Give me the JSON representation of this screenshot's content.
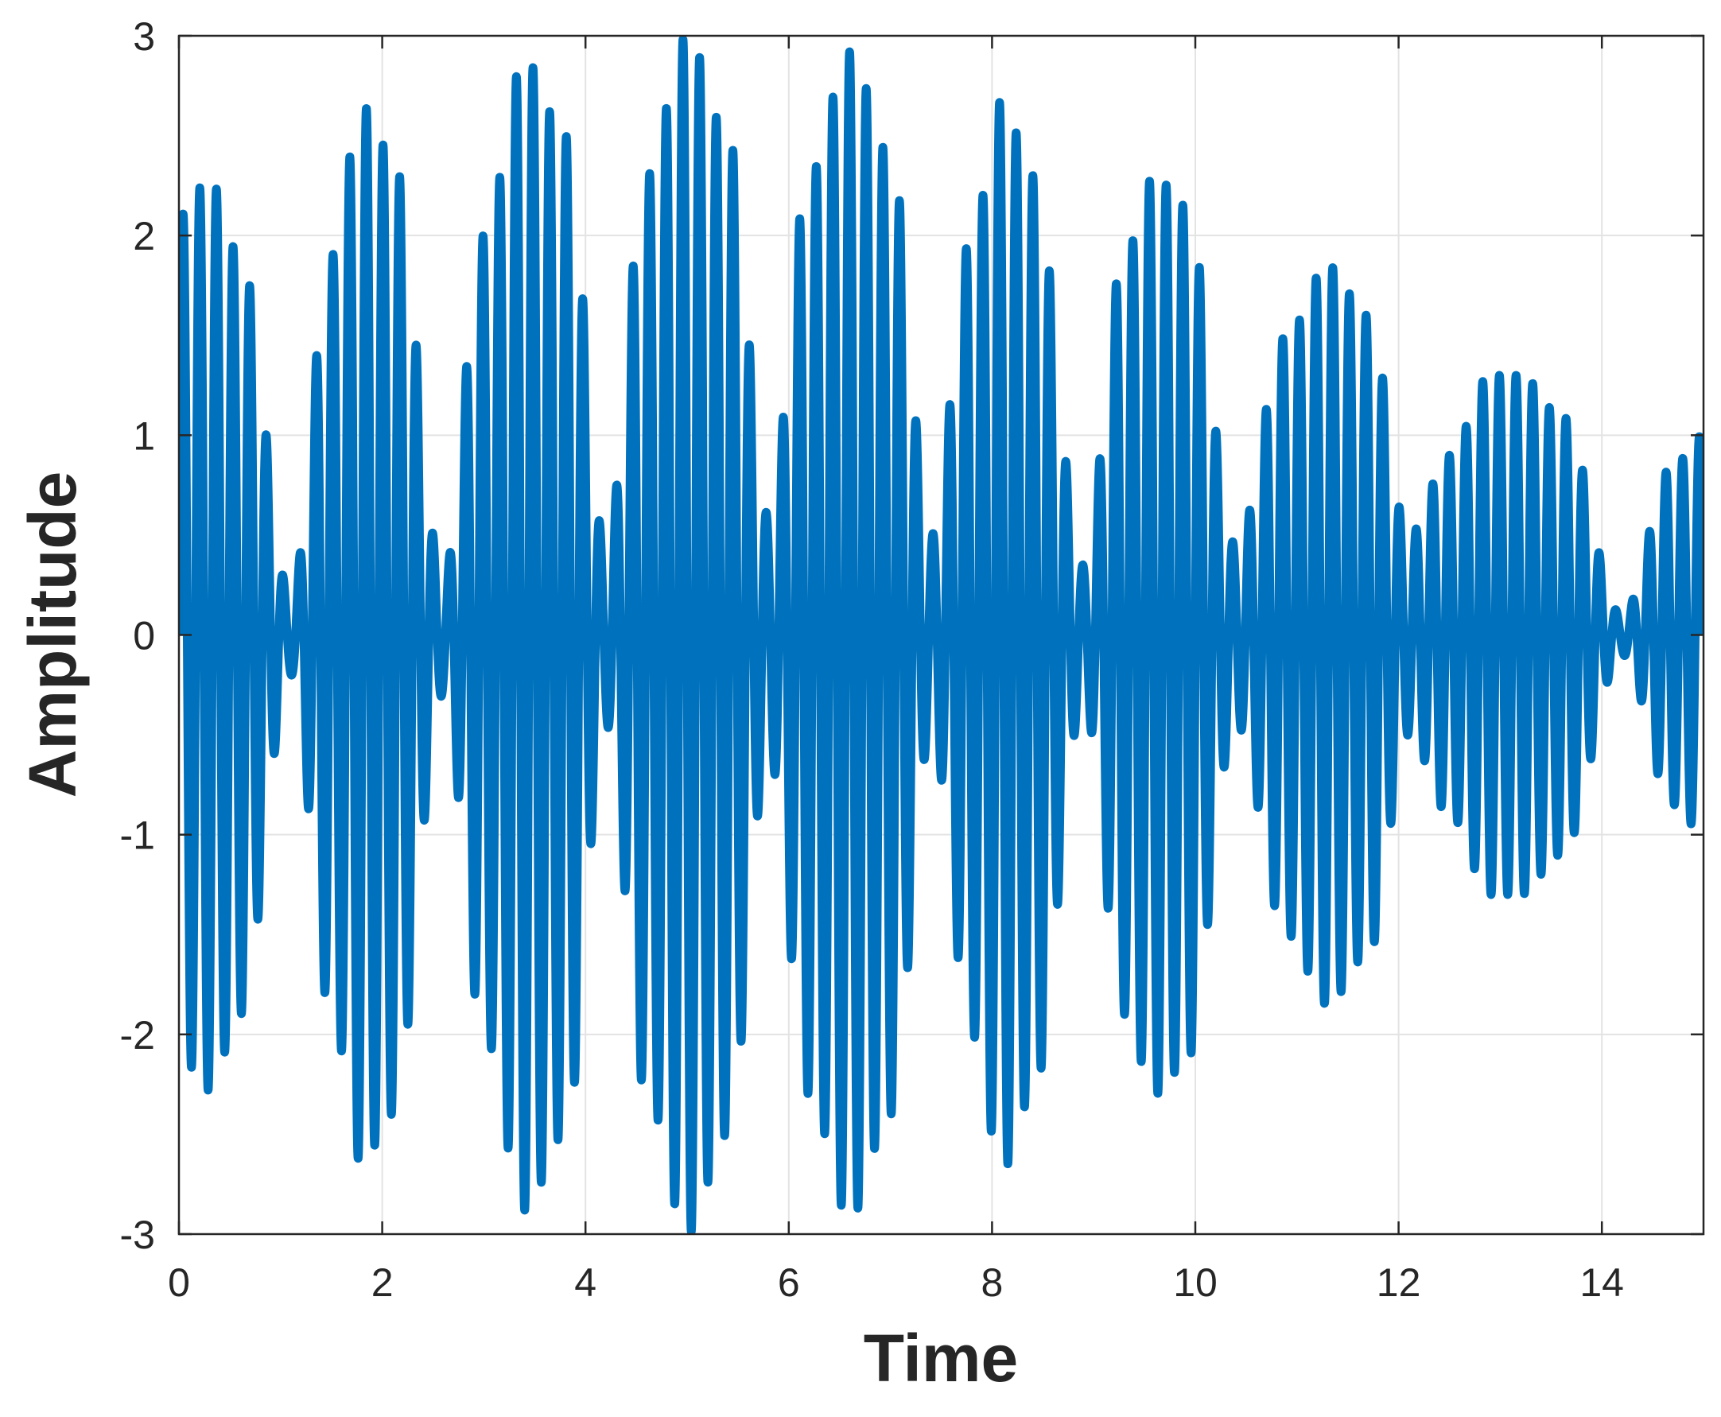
{
  "chart_data": {
    "type": "line",
    "xlabel": "Time",
    "ylabel": "Amplitude",
    "xlim": [
      0,
      15
    ],
    "ylim": [
      -3,
      3
    ],
    "xticks": [
      "0",
      "2",
      "4",
      "6",
      "8",
      "10",
      "12",
      "14"
    ],
    "yticks": [
      "-3",
      "-2",
      "-1",
      "0",
      "1",
      "2",
      "3"
    ],
    "grid": true,
    "series": [
      {
        "color": "#0072bd",
        "signal": "carrier oscillation (~6.1 cycles per time unit) with beating envelope; peaks ~±2.9 near t≈3.4, 5.0, 6.6, decaying to ~±1 by t≈15",
        "envelope": {
          "t": [
            0,
            0.3,
            0.6,
            1.1,
            1.5,
            1.8,
            2.1,
            2.6,
            3.0,
            3.4,
            3.8,
            4.2,
            4.6,
            5.0,
            5.4,
            5.8,
            6.2,
            6.6,
            7.0,
            7.4,
            7.8,
            8.1,
            8.4,
            8.9,
            9.3,
            9.6,
            9.9,
            10.4,
            10.9,
            11.3,
            11.7,
            12.1,
            12.5,
            12.9,
            13.2,
            13.6,
            14.2,
            14.7,
            15.0
          ],
          "amp": [
            2.1,
            2.28,
            1.9,
            0.2,
            1.9,
            2.65,
            2.4,
            0.3,
            2.0,
            2.88,
            2.5,
            0.45,
            2.3,
            3.0,
            2.5,
            0.6,
            2.3,
            2.92,
            2.4,
            0.5,
            2.0,
            2.68,
            2.3,
            0.35,
            1.9,
            2.3,
            2.15,
            0.45,
            1.5,
            1.85,
            1.6,
            0.5,
            0.9,
            1.3,
            1.3,
            1.1,
            0.1,
            0.85,
            1.0
          ]
        }
      }
    ]
  }
}
